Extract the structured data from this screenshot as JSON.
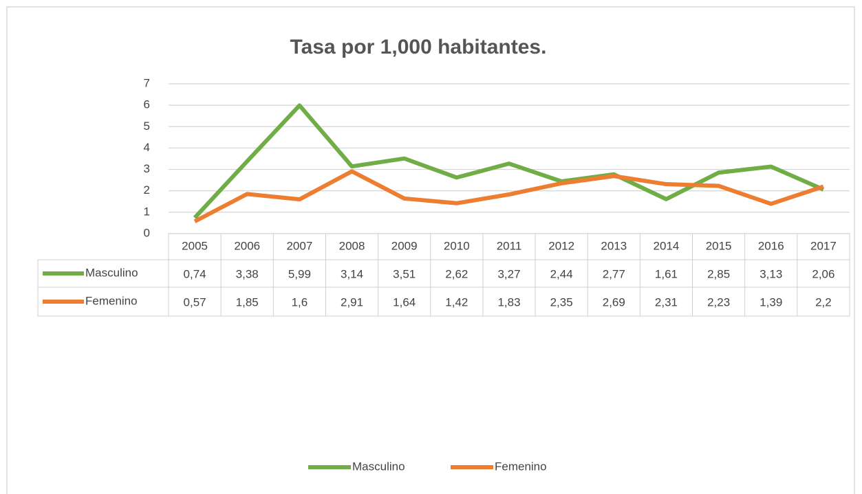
{
  "chart_data": {
    "type": "line",
    "title": "Tasa por 1,000 habitantes.",
    "categories": [
      "2005",
      "2006",
      "2007",
      "2008",
      "2009",
      "2010",
      "2011",
      "2012",
      "2013",
      "2014",
      "2015",
      "2016",
      "2017"
    ],
    "series": [
      {
        "name": "Masculino",
        "color": "#70ad47",
        "values": [
          0.74,
          3.38,
          5.99,
          3.14,
          3.51,
          2.62,
          3.27,
          2.44,
          2.77,
          1.61,
          2.85,
          3.13,
          2.06
        ],
        "value_labels": [
          "0,74",
          "3,38",
          "5,99",
          "3,14",
          "3,51",
          "2,62",
          "3,27",
          "2,44",
          "2,77",
          "1,61",
          "2,85",
          "3,13",
          "2,06"
        ]
      },
      {
        "name": "Femenino",
        "color": "#ed7d31",
        "values": [
          0.57,
          1.85,
          1.6,
          2.91,
          1.64,
          1.42,
          1.83,
          2.35,
          2.69,
          2.31,
          2.23,
          1.39,
          2.2
        ],
        "value_labels": [
          "0,57",
          "1,85",
          "1,6",
          "2,91",
          "1,64",
          "1,42",
          "1,83",
          "2,35",
          "2,69",
          "2,31",
          "2,23",
          "1,39",
          "2,2"
        ]
      }
    ],
    "ylim": [
      0,
      7
    ],
    "yticks": [
      0,
      1,
      2,
      3,
      4,
      5,
      6,
      7
    ],
    "grid": true,
    "legend": "bottom"
  }
}
